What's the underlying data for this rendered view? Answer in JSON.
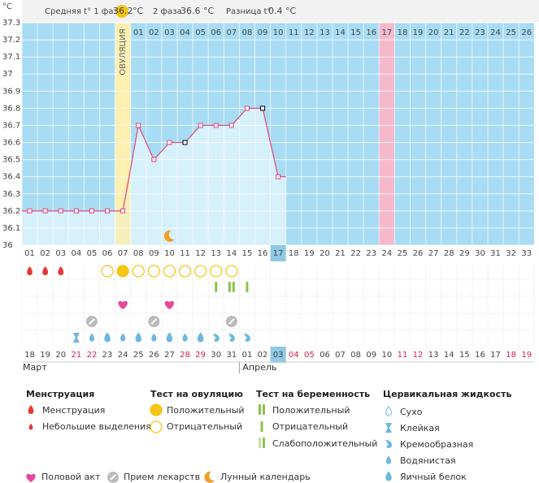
{
  "header": {
    "avg1_label": "Средняя t° 1 фаза",
    "avg1": "36.2",
    "avg1_unit": "°C",
    "avg2_label": "2 фаза",
    "avg2": "36.6 °C",
    "diff_label": "Разница t°",
    "diff": "0.4 °C"
  },
  "chart_data": {
    "type": "line",
    "y_unit": "°C",
    "ovulation_label": "ОВУЛЯЦИЯ",
    "color": "#e0457b",
    "categories": [
      "01",
      "02",
      "03",
      "04",
      "05",
      "06",
      "07",
      "08",
      "09",
      "10",
      "11",
      "12",
      "13",
      "14",
      "15",
      "16",
      "17",
      "18",
      "19",
      "20",
      "21",
      "22",
      "23",
      "24",
      "25",
      "26",
      "27",
      "28",
      "29",
      "30",
      "31",
      "32",
      "33"
    ],
    "phase2_days": [
      "01",
      "02",
      "03",
      "04",
      "05",
      "06",
      "07",
      "08",
      "09",
      "10",
      "11",
      "12",
      "13",
      "14",
      "15",
      "16",
      "17",
      "18",
      "19",
      "20",
      "21",
      "22",
      "23",
      "24",
      "25",
      "26"
    ],
    "values": [
      36.2,
      36.2,
      36.2,
      36.2,
      36.2,
      36.2,
      36.2,
      36.7,
      36.5,
      36.6,
      36.6,
      36.7,
      36.7,
      36.7,
      36.8,
      36.8,
      36.4,
      null,
      null,
      null,
      null,
      null,
      null,
      null,
      null,
      null,
      null,
      null,
      null,
      null,
      null,
      null,
      null
    ],
    "ylim": [
      36,
      37.3
    ],
    "yticks": [
      36,
      36.1,
      36.2,
      36.3,
      36.4,
      36.5,
      36.6,
      36.7,
      36.8,
      36.9,
      37,
      37.1,
      37.2,
      37.3
    ],
    "grid": true
  },
  "dates": [
    "18",
    "19",
    "20",
    "21",
    "22",
    "23",
    "24",
    "25",
    "26",
    "27",
    "28",
    "29",
    "30",
    "31",
    "01",
    "02",
    "03",
    "04",
    "05",
    "06",
    "07",
    "08",
    "09",
    "10",
    "11",
    "12",
    "13",
    "14",
    "15",
    "16",
    "17",
    "18",
    "19"
  ],
  "months": [
    "Март",
    "Апрель"
  ],
  "legend": {
    "menstruation": {
      "title": "Менструация",
      "items": [
        "Менструация",
        "Небольшие выделения"
      ]
    },
    "ovulation_test": {
      "title": "Тест на овуляцию",
      "items": [
        "Положительный",
        "Отрицательный"
      ]
    },
    "pregnancy_test": {
      "title": "Тест на беременность",
      "items": [
        "Положительный",
        "Отрицательный",
        "Слабоположительный"
      ]
    },
    "cervical_fluid": {
      "title": "Цервикальная жидкость",
      "items": [
        "Сухо",
        "Клейкая",
        "Кремообразная",
        "Водянистая",
        "Яичный белок"
      ]
    },
    "other": [
      "Половой акт",
      "Прием лекарств",
      "Лунный календарь"
    ]
  }
}
